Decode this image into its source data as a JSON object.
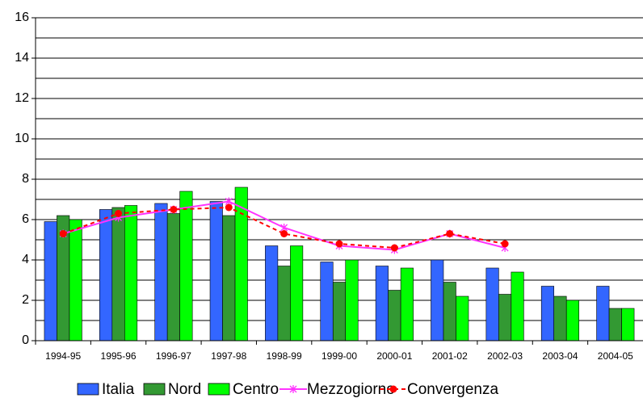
{
  "chart_data": {
    "type": "bar_line",
    "categories": [
      "1994-95",
      "1995-96",
      "1996-97",
      "1997-98",
      "1998-99",
      "1999-00",
      "2000-01",
      "2001-02",
      "2002-03",
      "2003-04",
      "2004-05"
    ],
    "series": [
      {
        "name": "Italia",
        "kind": "bar",
        "color": "#3366ff",
        "values": [
          5.9,
          6.5,
          6.8,
          6.9,
          4.7,
          3.9,
          3.7,
          4.0,
          3.6,
          2.7,
          2.7
        ]
      },
      {
        "name": "Nord",
        "kind": "bar",
        "color": "#339933",
        "values": [
          6.2,
          6.6,
          6.3,
          6.2,
          3.7,
          2.9,
          2.5,
          2.9,
          2.3,
          2.2,
          1.6
        ]
      },
      {
        "name": "Centro",
        "kind": "bar",
        "color": "#00ff00",
        "values": [
          6.0,
          6.7,
          7.4,
          7.6,
          4.7,
          4.0,
          3.6,
          2.2,
          3.4,
          2.0,
          1.6
        ]
      },
      {
        "name": "Mezzogiorno",
        "kind": "line",
        "color": "#ff33ff",
        "marker": "star",
        "values": [
          5.3,
          6.1,
          6.5,
          6.9,
          5.6,
          4.7,
          4.5,
          5.3,
          4.6,
          null,
          null
        ]
      },
      {
        "name": "Convergenza",
        "kind": "line",
        "color": "#ff0000",
        "marker": "dot",
        "dashed": true,
        "values": [
          5.3,
          6.3,
          6.5,
          6.6,
          5.3,
          4.8,
          4.6,
          5.3,
          4.8,
          null,
          null
        ]
      }
    ],
    "ylim": [
      0,
      16
    ],
    "yticks": [
      0,
      2,
      4,
      6,
      8,
      10,
      12,
      14,
      16
    ],
    "minor_grid": [
      1,
      3,
      5,
      7,
      9,
      11,
      13,
      15
    ],
    "grid": true,
    "legend": "bottom"
  }
}
